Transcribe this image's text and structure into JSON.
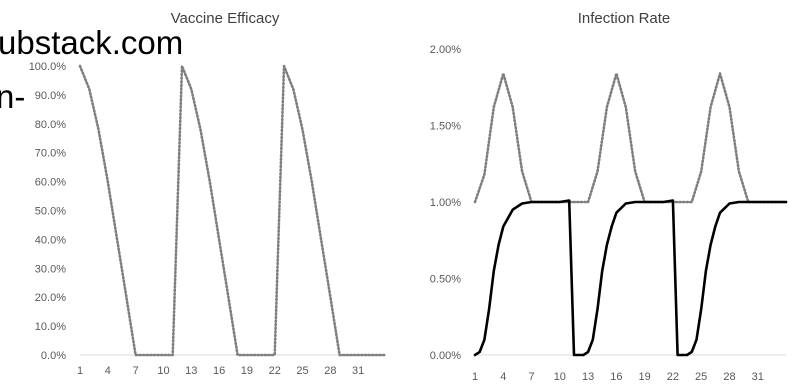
{
  "overlay": {
    "url_fragment": "ubstack.com",
    "hyphen_fragment": "n-"
  },
  "chart_data": [
    {
      "type": "line",
      "title": "Vaccine Efficacy",
      "xlabel": "",
      "ylabel": "",
      "x_ticks": [
        1,
        4,
        7,
        10,
        13,
        16,
        19,
        22,
        25,
        28,
        31
      ],
      "y_ticks": [
        "0.0%",
        "10.0%",
        "20.0%",
        "30.0%",
        "40.0%",
        "50.0%",
        "60.0%",
        "70.0%",
        "80.0%",
        "90.0%",
        "100.0%"
      ],
      "xlim": [
        1,
        34
      ],
      "ylim": [
        0,
        100
      ],
      "grid": false,
      "legend": "none",
      "series": [
        {
          "style": "dotted",
          "color": "#7f7f7f",
          "x": [
            1,
            2,
            3,
            4,
            5,
            6,
            7,
            8,
            9,
            10,
            11,
            12,
            13,
            14,
            15,
            16,
            17,
            18,
            19,
            20,
            21,
            22,
            23,
            24,
            25,
            26,
            27,
            28,
            29,
            30,
            31,
            32,
            33,
            34
          ],
          "values": [
            100,
            92,
            78,
            60,
            40,
            20,
            0,
            0,
            0,
            0,
            0,
            100,
            92,
            78,
            60,
            40,
            20,
            0,
            0,
            0,
            0,
            0,
            100,
            92,
            78,
            60,
            40,
            20,
            0,
            0,
            0,
            0,
            0,
            0
          ]
        }
      ]
    },
    {
      "type": "line",
      "title": "Infection Rate",
      "xlabel": "",
      "ylabel": "",
      "x_ticks": [
        1,
        4,
        7,
        10,
        13,
        16,
        19,
        22,
        25,
        28,
        31
      ],
      "y_ticks": [
        "0.00%",
        "0.50%",
        "1.00%",
        "1.50%",
        "2.00%"
      ],
      "xlim": [
        1,
        34
      ],
      "ylim": [
        0,
        2
      ],
      "grid": false,
      "legend": "none",
      "series": [
        {
          "style": "dotted",
          "color": "#7f7f7f",
          "x": [
            1,
            2,
            3,
            4,
            5,
            6,
            7,
            8,
            9,
            10,
            11,
            12,
            13,
            14,
            15,
            16,
            17,
            18,
            19,
            20,
            21,
            22,
            23,
            24,
            25,
            26,
            27,
            28,
            29,
            30,
            31,
            32,
            33,
            34
          ],
          "values": [
            1.0,
            1.18,
            1.62,
            1.84,
            1.62,
            1.2,
            1.0,
            1.0,
            1.0,
            1.0,
            1.0,
            1.0,
            1.0,
            1.2,
            1.62,
            1.84,
            1.62,
            1.2,
            1.0,
            1.0,
            1.0,
            1.0,
            1.0,
            1.0,
            1.2,
            1.62,
            1.84,
            1.62,
            1.2,
            1.0,
            1.0,
            1.0,
            1.0,
            1.0
          ]
        },
        {
          "style": "solid",
          "color": "#000000",
          "x": [
            1,
            1.5,
            2,
            2.5,
            3,
            3.5,
            4,
            5,
            6,
            7,
            8,
            9,
            10,
            11,
            11.5,
            12,
            12.5,
            13,
            13.5,
            14,
            14.5,
            15,
            15.5,
            16,
            17,
            18,
            19,
            20,
            21,
            22,
            22.5,
            23,
            23.5,
            24,
            24.5,
            25,
            25.5,
            26,
            26.5,
            27,
            28,
            29,
            30,
            31,
            32,
            33,
            34
          ],
          "values": [
            0.0,
            0.02,
            0.1,
            0.3,
            0.55,
            0.72,
            0.84,
            0.95,
            0.99,
            1.0,
            1.0,
            1.0,
            1.0,
            1.01,
            0.0,
            0.0,
            0.0,
            0.02,
            0.1,
            0.3,
            0.55,
            0.72,
            0.84,
            0.93,
            0.99,
            1.0,
            1.0,
            1.0,
            1.0,
            1.01,
            0.0,
            0.0,
            0.0,
            0.02,
            0.1,
            0.3,
            0.55,
            0.72,
            0.84,
            0.93,
            0.99,
            1.0,
            1.0,
            1.0,
            1.0,
            1.0,
            1.0
          ]
        }
      ]
    }
  ]
}
